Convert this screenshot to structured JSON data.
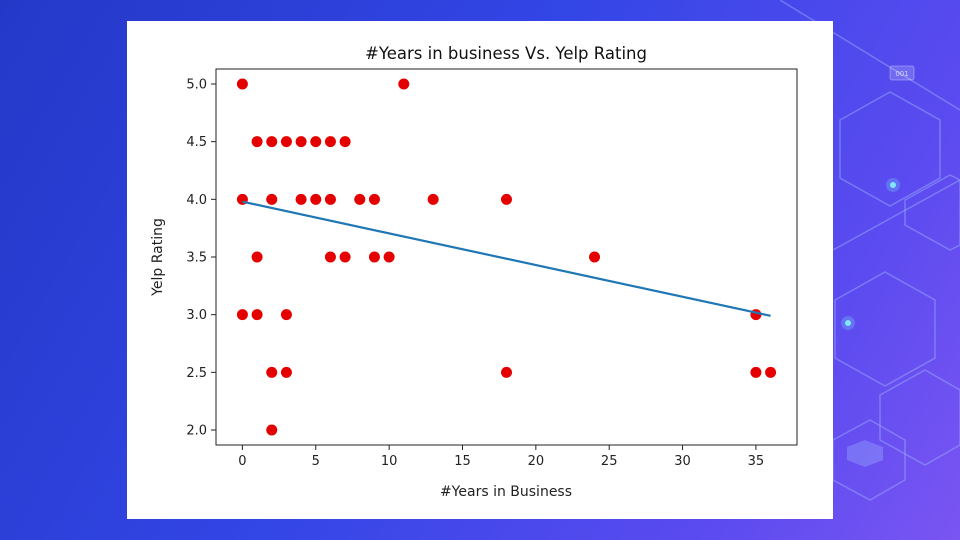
{
  "background": {
    "badge_text": "001",
    "colors": {
      "gradient_start": "#2438c8",
      "gradient_end": "#7a55f2",
      "line": "#9fb4ff",
      "glow": "#7fe8ff"
    }
  },
  "chart_data": {
    "type": "scatter",
    "title": "#Years in business Vs. Yelp Rating",
    "xlabel": "#Years in Business",
    "ylabel": "Yelp Rating",
    "xlim": [
      -1.8,
      37.8
    ],
    "ylim": [
      1.87,
      5.13
    ],
    "xticks": [
      0,
      5,
      10,
      15,
      20,
      25,
      30,
      35
    ],
    "yticks": [
      2.0,
      2.5,
      3.0,
      3.5,
      4.0,
      4.5,
      5.0
    ],
    "grid": false,
    "series": [
      {
        "kind": "points",
        "color": "#e50000",
        "points": [
          [
            0,
            5.0
          ],
          [
            0,
            4.0
          ],
          [
            0,
            3.0
          ],
          [
            1,
            4.5
          ],
          [
            1,
            3.5
          ],
          [
            1,
            3.0
          ],
          [
            2,
            4.5
          ],
          [
            2,
            4.0
          ],
          [
            2,
            2.5
          ],
          [
            2,
            2.0
          ],
          [
            3,
            4.5
          ],
          [
            3,
            3.0
          ],
          [
            3,
            2.5
          ],
          [
            4,
            4.5
          ],
          [
            4,
            4.0
          ],
          [
            5,
            4.5
          ],
          [
            5,
            4.0
          ],
          [
            6,
            4.5
          ],
          [
            6,
            4.0
          ],
          [
            6,
            3.5
          ],
          [
            7,
            4.5
          ],
          [
            7,
            3.5
          ],
          [
            8,
            4.0
          ],
          [
            9,
            4.0
          ],
          [
            9,
            3.5
          ],
          [
            10,
            3.5
          ],
          [
            11,
            5.0
          ],
          [
            13,
            4.0
          ],
          [
            18,
            4.0
          ],
          [
            18,
            2.5
          ],
          [
            24,
            3.5
          ],
          [
            35,
            3.0
          ],
          [
            35,
            2.5
          ],
          [
            36,
            2.5
          ]
        ]
      },
      {
        "kind": "fit-line",
        "color": "#1f77b4",
        "x": [
          0,
          36
        ],
        "y": [
          3.98,
          2.99
        ]
      }
    ]
  }
}
